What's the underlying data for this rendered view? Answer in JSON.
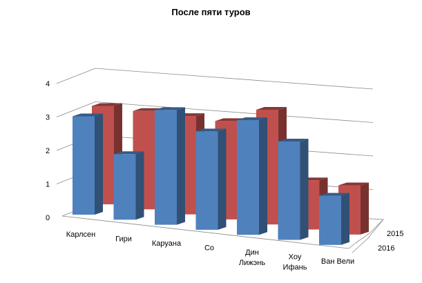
{
  "chart_data": {
    "type": "bar",
    "subtype": "3d-column",
    "title": "После пяти туров",
    "categories": [
      "Карлсен",
      "Гири",
      "Каруана",
      "Со",
      "Дин Лижэнь",
      "Хоу Ифань",
      "Ван Вели"
    ],
    "category_lines": [
      [
        "Карлсен"
      ],
      [
        "Гири"
      ],
      [
        "Каруана"
      ],
      [
        "Со"
      ],
      [
        "Дин",
        "Лижэнь"
      ],
      [
        "Хоу",
        "Ифань"
      ],
      [
        "Ван Вели"
      ]
    ],
    "series": [
      {
        "name": "2016",
        "color": "#4F81BD",
        "values": [
          3,
          2,
          3.5,
          3,
          3.5,
          3,
          1.5
        ]
      },
      {
        "name": "2015",
        "color": "#C0504D",
        "values": [
          3,
          3,
          3,
          3,
          3.5,
          1.5,
          1.5
        ]
      }
    ],
    "yticks": [
      "0",
      "1",
      "2",
      "3",
      "4"
    ],
    "ylim": [
      0,
      4
    ],
    "grid": true,
    "xlabel": "",
    "ylabel": ""
  }
}
